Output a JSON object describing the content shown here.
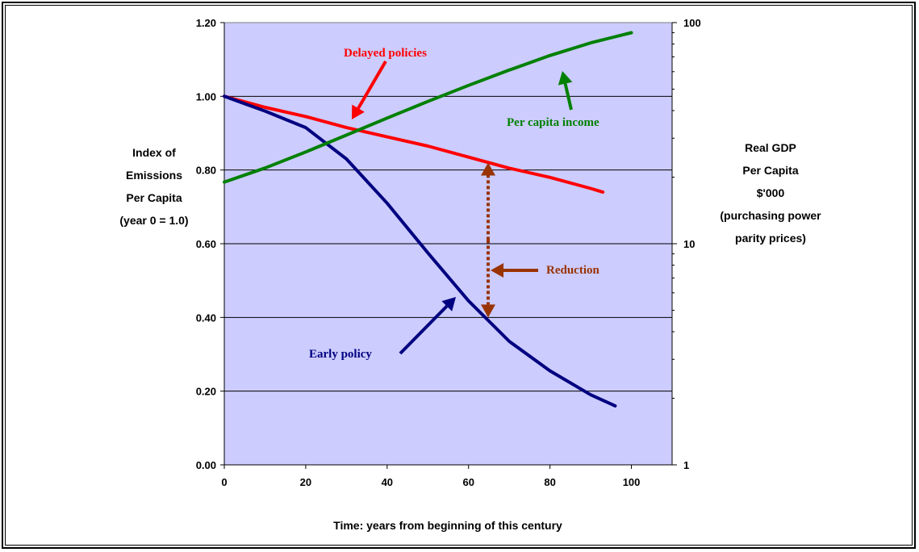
{
  "chart_data": {
    "type": "line",
    "title": "",
    "xlabel": "Time:  years from beginning of this century",
    "ylabel_left": [
      "Index of",
      "Emissions",
      "Per Capita",
      "(year 0 = 1.0)"
    ],
    "ylabel_right": [
      "Real GDP",
      "Per Capita",
      "$'000",
      "(purchasing power",
      "parity prices)"
    ],
    "xlim": [
      0,
      110
    ],
    "ylim_left": [
      0,
      1.2
    ],
    "ylim_right": [
      1,
      100
    ],
    "right_axis_scale": "log",
    "x_ticks": [
      "0",
      "20",
      "40",
      "60",
      "80",
      "100"
    ],
    "y_ticks_left": [
      "0.00",
      "0.20",
      "0.40",
      "0.60",
      "0.80",
      "1.00",
      "1.20"
    ],
    "y_ticks_right": [
      "1",
      "10",
      "100"
    ],
    "grid": "horizontal",
    "colors": {
      "plot_bg": "#ccccff",
      "delayed": "#ff0000",
      "early": "#000080",
      "income": "#008000",
      "reduction": "#993300"
    },
    "series": [
      {
        "key": "delayed",
        "axis": "left",
        "x": [
          0,
          10,
          20,
          30,
          40,
          50,
          60,
          70,
          80,
          90,
          93
        ],
        "values": [
          1.0,
          0.97,
          0.945,
          0.915,
          0.89,
          0.865,
          0.835,
          0.805,
          0.78,
          0.75,
          0.74
        ]
      },
      {
        "key": "early",
        "axis": "left",
        "x": [
          0,
          5,
          10,
          20,
          30,
          40,
          50,
          60,
          70,
          80,
          90,
          96
        ],
        "values": [
          1.0,
          0.98,
          0.96,
          0.915,
          0.83,
          0.71,
          0.575,
          0.445,
          0.335,
          0.255,
          0.19,
          0.16
        ]
      },
      {
        "key": "income",
        "axis": "right",
        "x": [
          0,
          10,
          20,
          30,
          40,
          50,
          60,
          70,
          80,
          90,
          100
        ],
        "values": [
          19,
          22,
          26,
          31,
          37,
          44,
          52,
          61,
          71,
          81,
          90
        ]
      }
    ],
    "annotations": {
      "delayed": "Delayed policies",
      "income": "Per capita income",
      "reduction": "Reduction",
      "early": "Early policy"
    }
  }
}
